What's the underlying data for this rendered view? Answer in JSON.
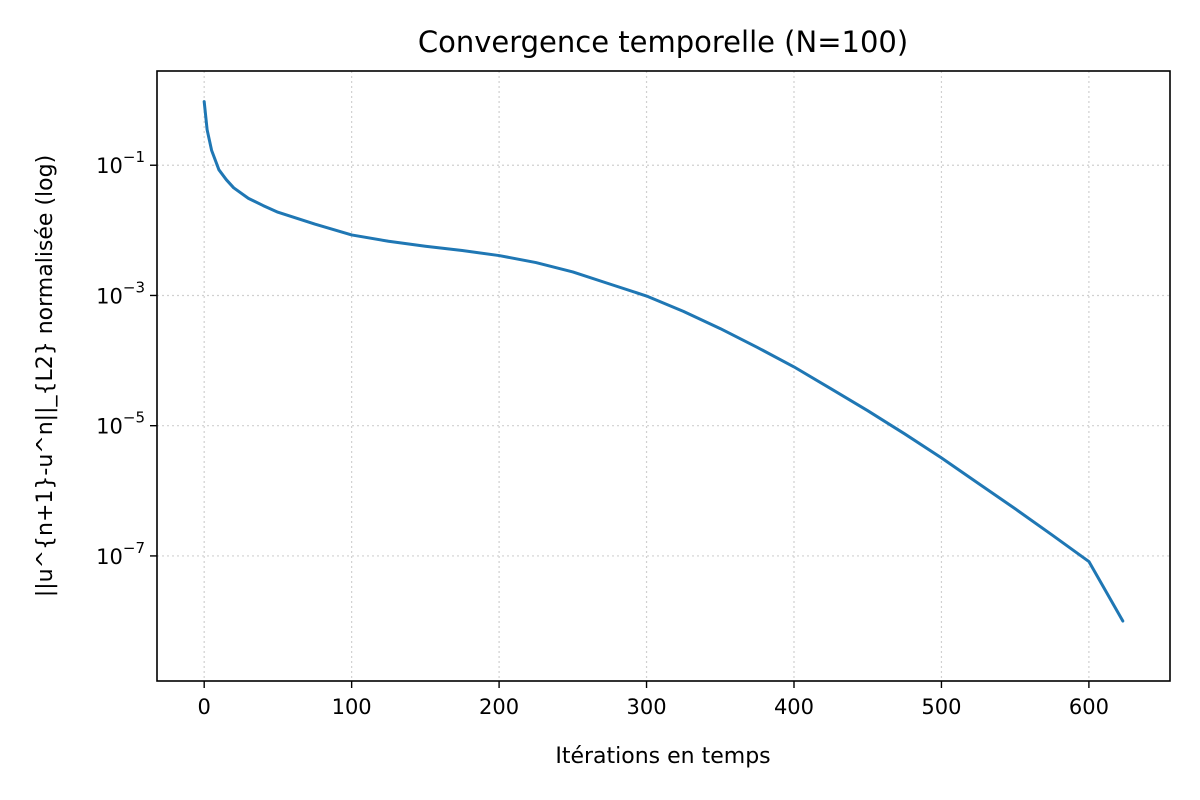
{
  "chart_data": {
    "type": "line",
    "title": "Convergence temporelle (N=100)",
    "xlabel": "Itérations en temps",
    "ylabel": "||u^{n+1}-u^n||_{L2} normalisée (log)",
    "yscale": "log",
    "xlim": [
      -32,
      655
    ],
    "ylim": [
      1.2e-09,
      2.8
    ],
    "x_ticks": [
      0,
      100,
      200,
      300,
      400,
      500,
      600
    ],
    "y_ticks": [
      {
        "value": 0.1,
        "base": "10",
        "exp": "−1"
      },
      {
        "value": 0.001,
        "base": "10",
        "exp": "−3"
      },
      {
        "value": 1e-05,
        "base": "10",
        "exp": "−5"
      },
      {
        "value": 1e-07,
        "base": "10",
        "exp": "−7"
      }
    ],
    "grid": true,
    "colors": {
      "series": "#1f77b4"
    },
    "series": [
      {
        "x": [
          0,
          2,
          5,
          10,
          15,
          20,
          30,
          40,
          50,
          75,
          100,
          125,
          150,
          175,
          200,
          225,
          250,
          275,
          300,
          325,
          350,
          375,
          400,
          425,
          450,
          475,
          500,
          525,
          550,
          575,
          600,
          623
        ],
        "y": [
          0.95,
          0.35,
          0.17,
          0.085,
          0.06,
          0.045,
          0.031,
          0.024,
          0.019,
          0.0125,
          0.0085,
          0.0068,
          0.0057,
          0.0049,
          0.0041,
          0.0032,
          0.0023,
          0.0015,
          0.00098,
          0.00057,
          0.00031,
          0.00016,
          8e-05,
          3.7e-05,
          1.7e-05,
          7.5e-06,
          3.2e-06,
          1.3e-06,
          5.3e-07,
          2.1e-07,
          8.2e-08,
          1e-08
        ]
      }
    ]
  }
}
